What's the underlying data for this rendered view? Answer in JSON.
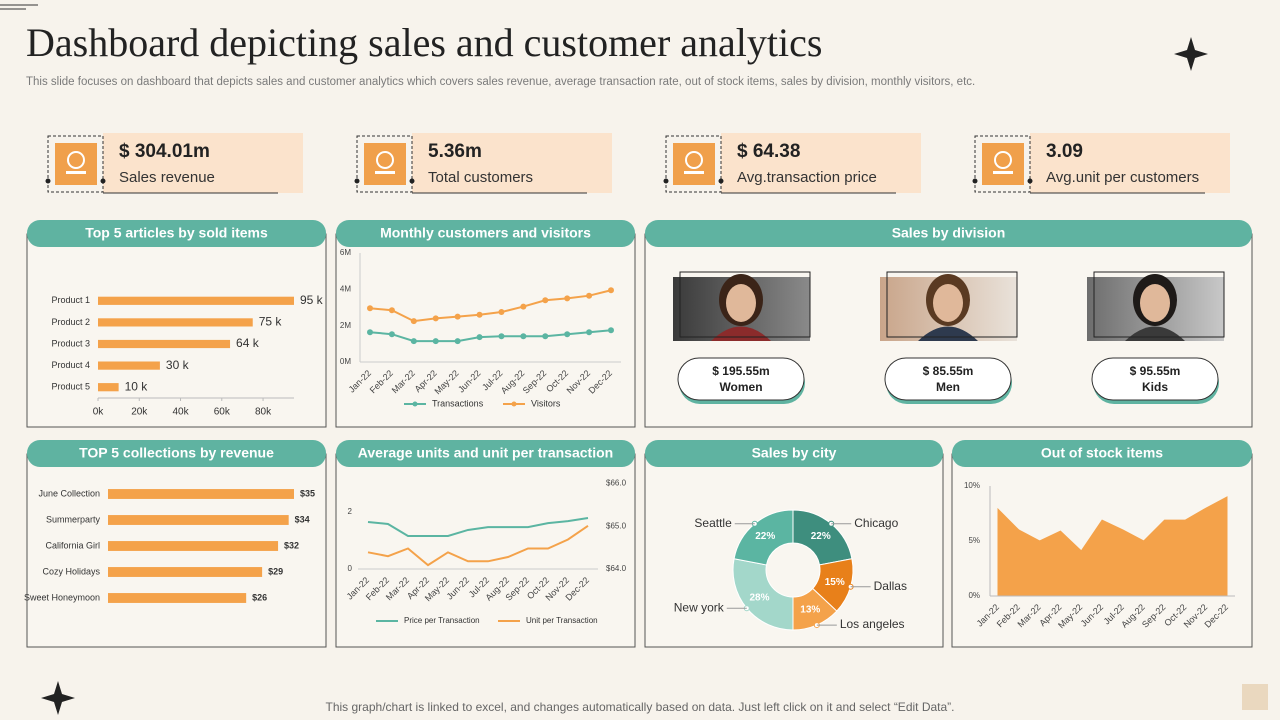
{
  "header": {
    "title": "Dashboard depicting sales and customer analytics",
    "subtitle": "This slide focuses on dashboard that depicts sales and customer analytics which covers sales revenue, average transaction rate, out of stock items, sales by division, monthly visitors, etc."
  },
  "kpis": [
    {
      "value": "$ 304.01m",
      "label": "Sales revenue"
    },
    {
      "value": "5.36m",
      "label": "Total customers"
    },
    {
      "value": "$ 64.38",
      "label": "Avg.transaction price"
    },
    {
      "value": "3.09",
      "label": "Avg.unit per customers"
    }
  ],
  "division": {
    "title": "Sales by division",
    "items": [
      {
        "value": "$ 195.55m",
        "label": "Women"
      },
      {
        "value": "$ 85.55m",
        "label": "Men"
      },
      {
        "value": "$ 95.55m",
        "label": "Kids"
      }
    ]
  },
  "footer": "This graph/chart is linked to excel,  and changes automatically based on data. Just left click on it and select “Edit Data”.",
  "chart_data": [
    {
      "type": "bar",
      "orientation": "horizontal",
      "title": "Top 5 articles by sold items",
      "categories": [
        "Product 1",
        "Product 2",
        "Product 3",
        "Product 4",
        "Product 5"
      ],
      "values": [
        95000,
        75000,
        64000,
        30000,
        10000
      ],
      "value_labels": [
        "95 k",
        "75 k",
        "64 k",
        "30 k",
        "10 k"
      ],
      "color": "#f4a24a",
      "xlim": [
        0,
        95000
      ],
      "xticks": [
        {
          "value": 0,
          "label": "0k"
        },
        {
          "value": 20000,
          "label": "20k"
        },
        {
          "value": 40000,
          "label": "40k"
        },
        {
          "value": 60000,
          "label": "60k"
        },
        {
          "value": 80000,
          "label": "80k"
        }
      ]
    },
    {
      "type": "line",
      "markers": true,
      "title": "Monthly customers and visitors",
      "categories": [
        "Jan-22",
        "Feb-22",
        "Mar-22",
        "Apr-22",
        "May-22",
        "Jun-22",
        "Jul-22",
        "Aug-22",
        "Sep-22",
        "Oct-22",
        "Nov-22",
        "Dec-22"
      ],
      "series": [
        {
          "name": "Transactions",
          "color": "#5bb5a2",
          "values": [
            1.64,
            1.53,
            1.15,
            1.15,
            1.15,
            1.37,
            1.42,
            1.42,
            1.42,
            1.53,
            1.64,
            1.75
          ]
        },
        {
          "name": "Visitors",
          "color": "#f4a24a",
          "values": [
            2.96,
            2.85,
            2.25,
            2.4,
            2.5,
            2.6,
            2.75,
            3.05,
            3.4,
            3.5,
            3.65,
            3.95
          ]
        }
      ],
      "ylim": [
        0,
        6
      ],
      "yticks": [
        {
          "value": 0,
          "label": "0M"
        },
        {
          "value": 2,
          "label": "2M"
        },
        {
          "value": 4,
          "label": "4M"
        },
        {
          "value": 6,
          "label": "6M"
        }
      ]
    },
    {
      "type": "bar",
      "orientation": "horizontal",
      "title": "TOP 5 collections by revenue",
      "categories": [
        "June Collection",
        "Summerparty",
        "California Girl",
        "Cozy Holidays",
        "Sweet Honeymoon"
      ],
      "values": [
        35,
        34,
        32,
        29,
        26
      ],
      "value_labels": [
        "$35",
        "$34",
        "$32",
        "$29",
        "$26"
      ],
      "color": "#f4a24a",
      "xlim": [
        0,
        35
      ]
    },
    {
      "type": "line",
      "markers": false,
      "title": "Average units and unit per transaction",
      "categories": [
        "Jan-22",
        "Feb-22",
        "Mar-22",
        "Apr-22",
        "May-22",
        "Jun-22",
        "Jul-22",
        "Aug-22",
        "Sep-22",
        "Oct-22",
        "Nov-22",
        "Dec-22"
      ],
      "series": [
        {
          "name": "Price per Transaction",
          "color": "#5bb5a2",
          "values": [
            1.65,
            1.58,
            1.16,
            1.16,
            1.16,
            1.37,
            1.47,
            1.47,
            1.47,
            1.61,
            1.68,
            1.79
          ]
        },
        {
          "name": "Unit per Transaction",
          "color": "#f4a24a",
          "axis": "y2",
          "values": [
            64.39,
            64.3,
            64.48,
            64.09,
            64.39,
            64.18,
            64.18,
            64.28,
            64.48,
            64.48,
            64.69,
            65.01
          ]
        }
      ],
      "ylim": [
        0,
        3
      ],
      "yticks": [
        0,
        2
      ],
      "y2lim": [
        64,
        66
      ],
      "y2ticks": [
        {
          "value": 64,
          "label": "$64.0"
        },
        {
          "value": 65,
          "label": "$65.0"
        },
        {
          "value": 66,
          "label": "$66.0"
        }
      ]
    },
    {
      "type": "pie",
      "donut": true,
      "title": "Sales by city",
      "categories": [
        "Chicago",
        "Dallas",
        "Los angeles",
        "New york",
        "Seattle"
      ],
      "values": [
        22,
        15,
        13,
        28,
        22
      ],
      "value_labels": [
        "22%",
        "15%",
        "13%",
        "28%",
        "22%"
      ],
      "colors": [
        "#3e8e7e",
        "#e8801a",
        "#f4a24a",
        "#a3d7ca",
        "#5bb5a2"
      ]
    },
    {
      "type": "area",
      "title": "Out of stock items",
      "categories": [
        "Jan-22",
        "Feb-22",
        "Mar-22",
        "Apr-22",
        "May-22",
        "Jun-22",
        "Jul-22",
        "Aug-22",
        "Sep-22",
        "Oct-22",
        "Nov-22",
        "Dec-22"
      ],
      "values": [
        7.9,
        6.0,
        5.0,
        5.9,
        4.1,
        6.9,
        6.0,
        5.0,
        6.9,
        6.9,
        8.0,
        9.0
      ],
      "color": "#f4a24a",
      "ylim": [
        0,
        10
      ],
      "yticks": [
        {
          "value": 0,
          "label": "0%"
        },
        {
          "value": 5,
          "label": "5%"
        },
        {
          "value": 10,
          "label": "10%"
        }
      ]
    }
  ]
}
